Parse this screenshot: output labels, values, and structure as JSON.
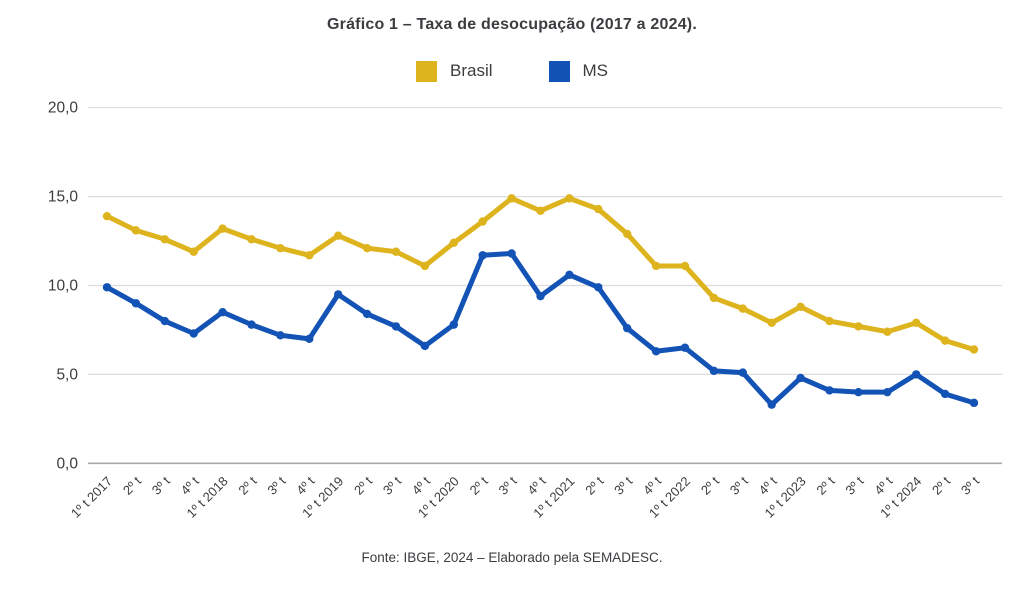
{
  "title": "Gráfico 1 – Taxa de desocupação (2017 a 2024).",
  "footer": "Fonte: IBGE, 2024 – Elaborado pela SEMADESC.",
  "colors": {
    "brasil": "#DEB41E",
    "ms": "#1353B5",
    "gridline": "#DCDCDC",
    "baseline": "#A9A9A9",
    "tick_text": "#3c3c41"
  },
  "chart_data": {
    "type": "line",
    "title": "Gráfico 1 – Taxa de desocupação (2017 a 2024).",
    "xlabel": "",
    "ylabel": "",
    "ylim": [
      0,
      20
    ],
    "grid": true,
    "legend_position": "top-center",
    "source_note": "Fonte: IBGE, 2024 – Elaborado pela SEMADESC.",
    "yticks": [
      {
        "value": 20,
        "label": "20,0"
      },
      {
        "value": 15,
        "label": "15,0"
      },
      {
        "value": 10,
        "label": "10,0"
      },
      {
        "value": 5,
        "label": "5,0"
      },
      {
        "value": 0,
        "label": "0,0"
      }
    ],
    "categories": [
      "1º t 2017",
      "2º t",
      "3º t",
      "4º t",
      "1º t 2018",
      "2º t",
      "3º t",
      "4º t",
      "1º t 2019",
      "2º t",
      "3º t",
      "4º t",
      "1º t 2020",
      "2º t",
      "3º t",
      "4º t",
      "1º t 2021",
      "2º t",
      "3º t",
      "4º t",
      "1º t 2022",
      "2º t",
      "3º t",
      "4º t",
      "1º t 2023",
      "2º t",
      "3º t",
      "4º t",
      "1º t 2024",
      "2º t",
      "3º t"
    ],
    "series": [
      {
        "name": "Brasil",
        "color": "#DEB41E",
        "values": [
          13.9,
          13.1,
          12.6,
          11.9,
          13.2,
          12.6,
          12.1,
          11.7,
          12.8,
          12.1,
          11.9,
          11.1,
          12.4,
          13.6,
          14.9,
          14.2,
          14.9,
          14.3,
          12.9,
          11.1,
          11.1,
          9.3,
          8.7,
          7.9,
          8.8,
          8.0,
          7.7,
          7.4,
          7.9,
          6.9,
          6.4
        ]
      },
      {
        "name": "MS",
        "color": "#1353B5",
        "values": [
          9.9,
          9.0,
          8.0,
          7.3,
          8.5,
          7.8,
          7.2,
          7.0,
          9.5,
          8.4,
          7.7,
          6.6,
          7.8,
          11.7,
          11.8,
          9.4,
          10.6,
          9.9,
          7.6,
          6.3,
          6.5,
          5.2,
          5.1,
          3.3,
          4.8,
          4.1,
          4.0,
          4.0,
          5.0,
          3.9,
          3.4
        ]
      }
    ]
  }
}
